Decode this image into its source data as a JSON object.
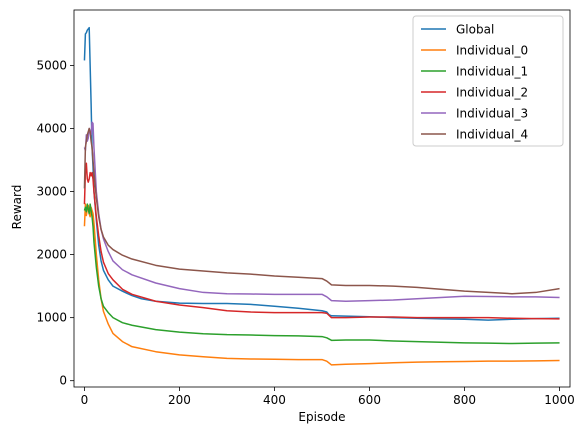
{
  "chart_data": {
    "type": "line",
    "title": "",
    "xlabel": "Episode",
    "ylabel": "Reward",
    "xlim": [
      -22,
      1022
    ],
    "ylim": [
      -100,
      5880
    ],
    "xticks": [
      0,
      200,
      400,
      600,
      800,
      1000
    ],
    "yticks": [
      0,
      1000,
      2000,
      3000,
      4000,
      5000
    ],
    "grid": false,
    "legend_position": "top-right",
    "series": [
      {
        "name": "Global",
        "color": "#1f77b4",
        "points": [
          [
            0,
            5080
          ],
          [
            2,
            5500
          ],
          [
            4,
            5520
          ],
          [
            6,
            5560
          ],
          [
            8,
            5580
          ],
          [
            10,
            5600
          ],
          [
            12,
            5000
          ],
          [
            14,
            4400
          ],
          [
            16,
            3700
          ],
          [
            18,
            3400
          ],
          [
            20,
            3000
          ],
          [
            25,
            2550
          ],
          [
            30,
            2150
          ],
          [
            35,
            1900
          ],
          [
            40,
            1750
          ],
          [
            50,
            1600
          ],
          [
            60,
            1500
          ],
          [
            80,
            1420
          ],
          [
            100,
            1350
          ],
          [
            120,
            1300
          ],
          [
            150,
            1260
          ],
          [
            200,
            1230
          ],
          [
            250,
            1225
          ],
          [
            300,
            1225
          ],
          [
            350,
            1210
          ],
          [
            400,
            1180
          ],
          [
            450,
            1150
          ],
          [
            500,
            1110
          ],
          [
            505,
            1100
          ],
          [
            510,
            1090
          ],
          [
            515,
            1045
          ],
          [
            520,
            1030
          ],
          [
            550,
            1025
          ],
          [
            600,
            1015
          ],
          [
            650,
            1000
          ],
          [
            700,
            990
          ],
          [
            750,
            980
          ],
          [
            800,
            975
          ],
          [
            850,
            960
          ],
          [
            900,
            975
          ],
          [
            950,
            985
          ],
          [
            1000,
            990
          ]
        ]
      },
      {
        "name": "Individual_0",
        "color": "#ff7f0e",
        "points": [
          [
            0,
            2450
          ],
          [
            2,
            2800
          ],
          [
            4,
            2620
          ],
          [
            6,
            2720
          ],
          [
            8,
            2780
          ],
          [
            10,
            2650
          ],
          [
            12,
            2600
          ],
          [
            14,
            2750
          ],
          [
            16,
            2700
          ],
          [
            18,
            2650
          ],
          [
            20,
            2500
          ],
          [
            25,
            2000
          ],
          [
            30,
            1600
          ],
          [
            35,
            1300
          ],
          [
            40,
            1100
          ],
          [
            50,
            900
          ],
          [
            60,
            750
          ],
          [
            80,
            620
          ],
          [
            100,
            540
          ],
          [
            150,
            460
          ],
          [
            200,
            410
          ],
          [
            250,
            380
          ],
          [
            300,
            355
          ],
          [
            350,
            345
          ],
          [
            400,
            340
          ],
          [
            450,
            335
          ],
          [
            500,
            335
          ],
          [
            510,
            310
          ],
          [
            520,
            250
          ],
          [
            550,
            260
          ],
          [
            600,
            270
          ],
          [
            650,
            285
          ],
          [
            700,
            295
          ],
          [
            750,
            300
          ],
          [
            800,
            305
          ],
          [
            850,
            310
          ],
          [
            900,
            310
          ],
          [
            950,
            315
          ],
          [
            1000,
            320
          ]
        ]
      },
      {
        "name": "Individual_1",
        "color": "#2ca02c",
        "points": [
          [
            0,
            2700
          ],
          [
            2,
            2750
          ],
          [
            4,
            2680
          ],
          [
            6,
            2800
          ],
          [
            8,
            2720
          ],
          [
            10,
            2650
          ],
          [
            12,
            2800
          ],
          [
            14,
            2700
          ],
          [
            16,
            2600
          ],
          [
            18,
            2450
          ],
          [
            20,
            2200
          ],
          [
            25,
            1800
          ],
          [
            30,
            1500
          ],
          [
            35,
            1300
          ],
          [
            40,
            1180
          ],
          [
            50,
            1080
          ],
          [
            60,
            1000
          ],
          [
            80,
            920
          ],
          [
            100,
            880
          ],
          [
            150,
            810
          ],
          [
            200,
            770
          ],
          [
            250,
            745
          ],
          [
            300,
            730
          ],
          [
            350,
            725
          ],
          [
            400,
            715
          ],
          [
            450,
            710
          ],
          [
            500,
            700
          ],
          [
            510,
            680
          ],
          [
            520,
            640
          ],
          [
            550,
            645
          ],
          [
            600,
            645
          ],
          [
            650,
            630
          ],
          [
            700,
            620
          ],
          [
            750,
            610
          ],
          [
            800,
            600
          ],
          [
            850,
            595
          ],
          [
            900,
            590
          ],
          [
            950,
            595
          ],
          [
            1000,
            600
          ]
        ]
      },
      {
        "name": "Individual_2",
        "color": "#d62728",
        "points": [
          [
            0,
            2800
          ],
          [
            2,
            3300
          ],
          [
            4,
            3450
          ],
          [
            6,
            3200
          ],
          [
            8,
            3150
          ],
          [
            10,
            3200
          ],
          [
            12,
            3300
          ],
          [
            14,
            3250
          ],
          [
            16,
            3300
          ],
          [
            18,
            3200
          ],
          [
            20,
            3000
          ],
          [
            25,
            2600
          ],
          [
            30,
            2300
          ],
          [
            35,
            2050
          ],
          [
            40,
            1880
          ],
          [
            50,
            1700
          ],
          [
            60,
            1600
          ],
          [
            80,
            1450
          ],
          [
            100,
            1370
          ],
          [
            150,
            1260
          ],
          [
            200,
            1200
          ],
          [
            250,
            1160
          ],
          [
            300,
            1110
          ],
          [
            350,
            1090
          ],
          [
            400,
            1080
          ],
          [
            450,
            1080
          ],
          [
            500,
            1080
          ],
          [
            510,
            1070
          ],
          [
            520,
            1000
          ],
          [
            550,
            1000
          ],
          [
            600,
            1010
          ],
          [
            650,
            1010
          ],
          [
            700,
            1000
          ],
          [
            750,
            1000
          ],
          [
            800,
            1000
          ],
          [
            850,
            1000
          ],
          [
            900,
            990
          ],
          [
            950,
            985
          ],
          [
            1000,
            980
          ]
        ]
      },
      {
        "name": "Individual_3",
        "color": "#9467bd",
        "points": [
          [
            0,
            3700
          ],
          [
            2,
            3650
          ],
          [
            4,
            3900
          ],
          [
            6,
            3800
          ],
          [
            8,
            3850
          ],
          [
            10,
            4000
          ],
          [
            12,
            3950
          ],
          [
            14,
            3900
          ],
          [
            16,
            4100
          ],
          [
            18,
            4080
          ],
          [
            20,
            3700
          ],
          [
            25,
            3000
          ],
          [
            30,
            2650
          ],
          [
            35,
            2400
          ],
          [
            40,
            2250
          ],
          [
            50,
            2050
          ],
          [
            60,
            1900
          ],
          [
            80,
            1760
          ],
          [
            100,
            1680
          ],
          [
            150,
            1550
          ],
          [
            200,
            1460
          ],
          [
            250,
            1400
          ],
          [
            300,
            1380
          ],
          [
            350,
            1375
          ],
          [
            400,
            1370
          ],
          [
            450,
            1370
          ],
          [
            500,
            1370
          ],
          [
            510,
            1330
          ],
          [
            520,
            1270
          ],
          [
            550,
            1260
          ],
          [
            600,
            1270
          ],
          [
            650,
            1280
          ],
          [
            700,
            1300
          ],
          [
            750,
            1320
          ],
          [
            800,
            1340
          ],
          [
            850,
            1335
          ],
          [
            900,
            1330
          ],
          [
            950,
            1330
          ],
          [
            1000,
            1320
          ]
        ]
      },
      {
        "name": "Individual_4",
        "color": "#8c564b",
        "points": [
          [
            0,
            3050
          ],
          [
            2,
            3700
          ],
          [
            4,
            3800
          ],
          [
            6,
            3900
          ],
          [
            8,
            3950
          ],
          [
            10,
            4000
          ],
          [
            12,
            3950
          ],
          [
            14,
            3800
          ],
          [
            16,
            3700
          ],
          [
            18,
            3500
          ],
          [
            20,
            3300
          ],
          [
            25,
            2900
          ],
          [
            30,
            2600
          ],
          [
            35,
            2400
          ],
          [
            40,
            2280
          ],
          [
            50,
            2150
          ],
          [
            60,
            2080
          ],
          [
            80,
            1990
          ],
          [
            100,
            1930
          ],
          [
            150,
            1830
          ],
          [
            200,
            1770
          ],
          [
            250,
            1740
          ],
          [
            300,
            1710
          ],
          [
            350,
            1690
          ],
          [
            400,
            1660
          ],
          [
            450,
            1640
          ],
          [
            500,
            1620
          ],
          [
            510,
            1580
          ],
          [
            520,
            1520
          ],
          [
            550,
            1510
          ],
          [
            600,
            1510
          ],
          [
            650,
            1500
          ],
          [
            700,
            1480
          ],
          [
            750,
            1450
          ],
          [
            800,
            1420
          ],
          [
            850,
            1400
          ],
          [
            900,
            1380
          ],
          [
            950,
            1400
          ],
          [
            1000,
            1460
          ]
        ]
      }
    ]
  }
}
